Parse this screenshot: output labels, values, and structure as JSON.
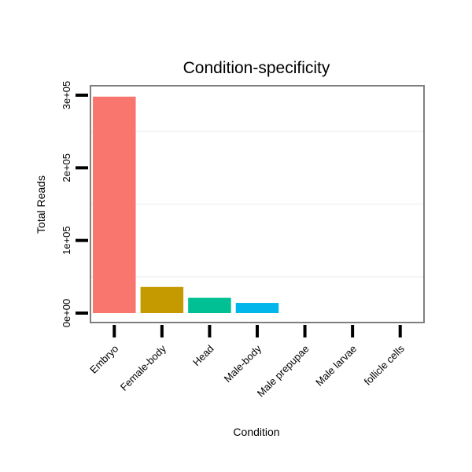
{
  "chart_data": {
    "type": "bar",
    "title": "Condition-specificity",
    "xlabel": "Condition",
    "ylabel": "Total Reads",
    "categories": [
      "Embryo",
      "Female-body",
      "Head",
      "Male-body",
      "Male prepupae",
      "Male larvae",
      "follicle cells"
    ],
    "values": [
      298000,
      36000,
      21000,
      14000,
      0,
      0,
      0
    ],
    "ylim": [
      -13000,
      313000
    ],
    "yticks": [
      0,
      100000,
      200000,
      300000
    ],
    "ytick_labels": [
      "0e+00",
      "1e+05",
      "2e+05",
      "3e+05"
    ],
    "colors": [
      "#F8766D",
      "#C49A00",
      "#00C094",
      "#00B6EB",
      "#A58AFF",
      "#FB61D7",
      "#53B400"
    ],
    "grid": true,
    "legend": "none"
  }
}
